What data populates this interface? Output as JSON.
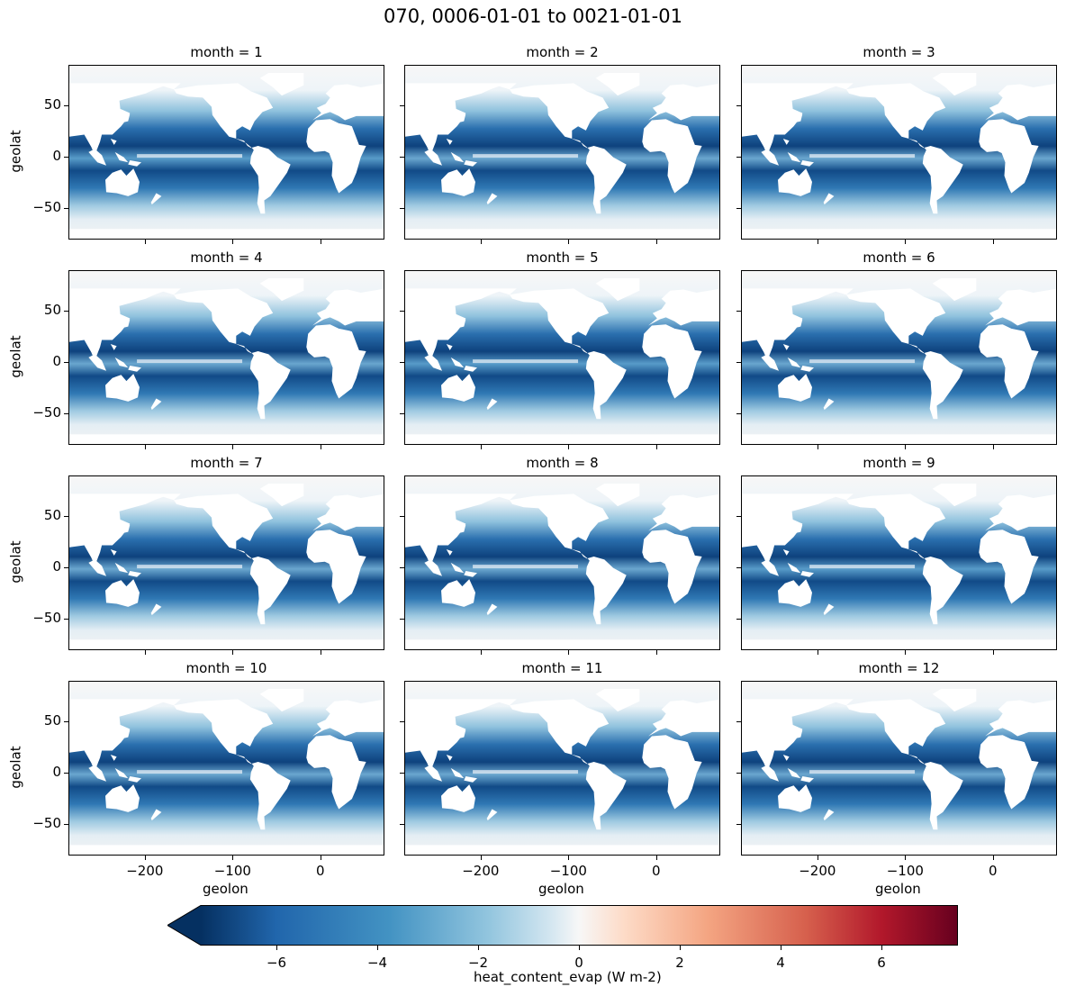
{
  "chart_data": {
    "type": "heatmap",
    "title": "070, 0006-01-01 to 0021-01-01",
    "variable": "heat_content_evap",
    "colorbar_label": "heat_content_evap (W m-2)",
    "colormap": "RdBu_r",
    "color_range": [
      -7.5,
      7.5
    ],
    "colorbar_ticks": [
      -6,
      -4,
      -2,
      0,
      2,
      4,
      6
    ],
    "colorbar_tick_labels": [
      "−6",
      "−4",
      "−2",
      "0",
      "2",
      "4",
      "6"
    ],
    "colorbar_extend": "min",
    "xlabel": "geolon",
    "ylabel": "geolat",
    "xlim": [
      -287,
      73
    ],
    "ylim": [
      -81,
      89
    ],
    "xticks": [
      -200,
      -100,
      0
    ],
    "xtick_labels": [
      "−200",
      "−100",
      "0"
    ],
    "yticks": [
      50,
      0,
      -50
    ],
    "ytick_labels": [
      "50",
      "0",
      "−50"
    ],
    "panels": [
      {
        "title": "month = 1"
      },
      {
        "title": "month = 2"
      },
      {
        "title": "month = 3"
      },
      {
        "title": "month = 4"
      },
      {
        "title": "month = 5"
      },
      {
        "title": "month = 6"
      },
      {
        "title": "month = 7"
      },
      {
        "title": "month = 8"
      },
      {
        "title": "month = 9"
      },
      {
        "title": "month = 10"
      },
      {
        "title": "month = 11"
      },
      {
        "title": "month = 12"
      }
    ]
  }
}
